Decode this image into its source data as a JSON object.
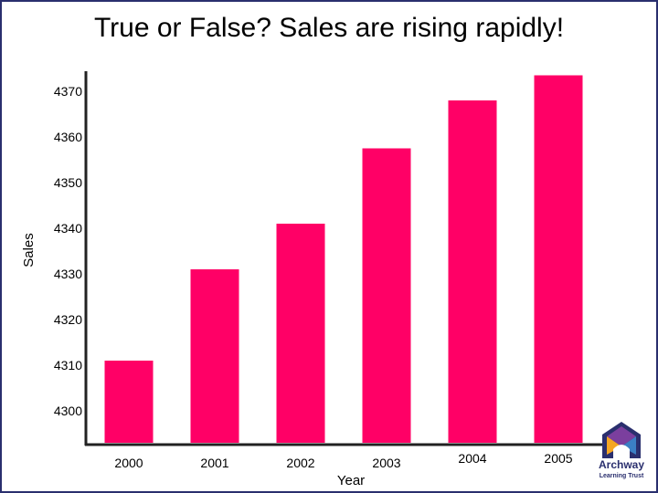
{
  "chart_data": {
    "type": "bar",
    "title": "True or False? Sales are rising rapidly!",
    "xlabel": "Year",
    "ylabel": "Sales",
    "categories": [
      "2000",
      "2001",
      "2002",
      "2003",
      "2004",
      "2005"
    ],
    "values": [
      4311,
      4331,
      4341,
      4357.5,
      4368,
      4373.5
    ],
    "ylim": [
      4293,
      4374
    ],
    "yticks": [
      4300,
      4310,
      4320,
      4330,
      4340,
      4350,
      4360,
      4370
    ],
    "grid": false,
    "legend": "none",
    "bar_color": "#ff0066"
  },
  "logo": {
    "word": "Archway",
    "sub": "Learning Trust",
    "colors": [
      "#2a2f6e",
      "#7b3f9e",
      "#f5a623",
      "#3b7fc4"
    ]
  },
  "frame_color": "#2a2f6e"
}
